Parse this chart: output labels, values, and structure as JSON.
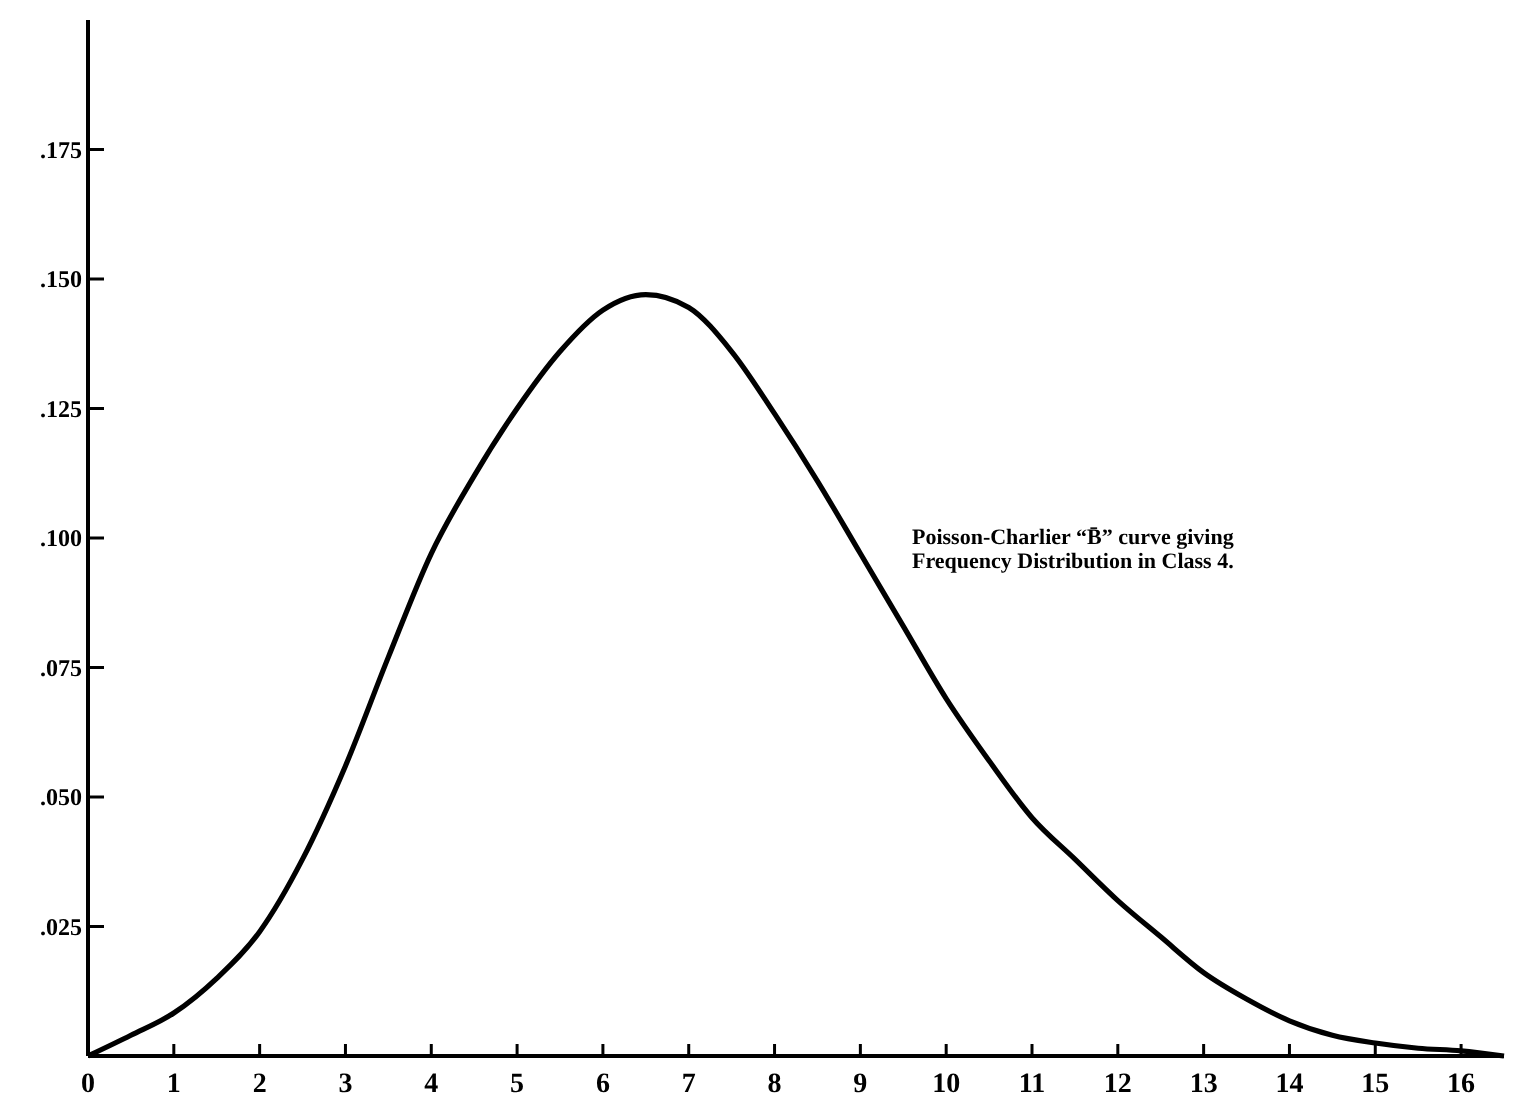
{
  "chart_data": {
    "type": "line",
    "x": [
      0,
      0.5,
      1,
      1.5,
      2,
      2.5,
      3,
      3.5,
      4,
      4.5,
      5,
      5.5,
      6,
      6.5,
      7,
      7.5,
      8,
      8.5,
      9,
      9.5,
      10,
      10.5,
      11,
      11.5,
      12,
      12.5,
      13,
      13.5,
      14,
      14.5,
      15,
      15.5,
      16,
      16.5
    ],
    "series": [
      {
        "color": "#000000",
        "values": [
          0,
          0.004,
          0.0083,
          0.015,
          0.024,
          0.038,
          0.056,
          0.077,
          0.097,
          0.112,
          0.125,
          0.136,
          0.144,
          0.147,
          0.1445,
          0.136,
          0.124,
          0.111,
          0.097,
          0.083,
          0.069,
          0.057,
          0.046,
          0.038,
          0.03,
          0.023,
          0.0161,
          0.011,
          0.0068,
          0.004,
          0.0025,
          0.0015,
          0.001,
          0
        ]
      }
    ],
    "xlim": [
      0,
      16.5
    ],
    "ylim": [
      0,
      0.2
    ],
    "xticks": [
      0,
      1,
      2,
      3,
      4,
      5,
      6,
      7,
      8,
      9,
      10,
      11,
      12,
      13,
      14,
      15,
      16
    ],
    "yticks": [
      {
        "value": 0.025,
        "label": ".025"
      },
      {
        "value": 0.05,
        "label": ".050"
      },
      {
        "value": 0.075,
        "label": ".075"
      },
      {
        "value": 0.1,
        "label": ".100"
      },
      {
        "value": 0.125,
        "label": ".125"
      },
      {
        "value": 0.15,
        "label": ".150"
      },
      {
        "value": 0.175,
        "label": ".175"
      }
    ],
    "annotations": [
      "Poisson-Charlier “B̄” curve giving\nFrequency Distribution in Class 4."
    ],
    "grid": false,
    "marker": "none",
    "line_style": "solid"
  }
}
